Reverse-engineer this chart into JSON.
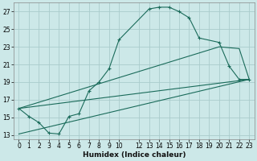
{
  "xlabel": "Humidex (Indice chaleur)",
  "background_color": "#cce8e8",
  "grid_color": "#aacccc",
  "line_color": "#1a6b5a",
  "xlim": [
    -0.5,
    23.5
  ],
  "ylim": [
    12.5,
    28.0
  ],
  "yticks": [
    13,
    15,
    17,
    19,
    21,
    23,
    25,
    27
  ],
  "xticks": [
    0,
    1,
    2,
    3,
    4,
    5,
    6,
    7,
    8,
    9,
    10,
    12,
    13,
    14,
    15,
    16,
    17,
    18,
    19,
    20,
    21,
    22,
    23
  ],
  "series": [
    {
      "x": [
        0,
        1,
        2,
        3,
        4,
        5,
        6,
        7,
        8,
        9,
        10,
        13,
        14,
        15,
        16,
        17,
        18,
        20,
        21,
        22,
        23
      ],
      "y": [
        16.0,
        15.1,
        14.4,
        13.2,
        13.1,
        15.1,
        15.4,
        18.0,
        19.0,
        20.5,
        23.8,
        27.3,
        27.5,
        27.5,
        27.0,
        26.3,
        24.0,
        23.5,
        20.8,
        19.3,
        19.3
      ],
      "marker": true
    },
    {
      "x": [
        0,
        23
      ],
      "y": [
        16.0,
        19.3
      ],
      "marker": false
    },
    {
      "x": [
        0,
        20,
        22,
        23
      ],
      "y": [
        16.0,
        23.0,
        22.8,
        19.3
      ],
      "marker": false
    },
    {
      "x": [
        0,
        23
      ],
      "y": [
        13.1,
        19.3
      ],
      "marker": false
    }
  ]
}
